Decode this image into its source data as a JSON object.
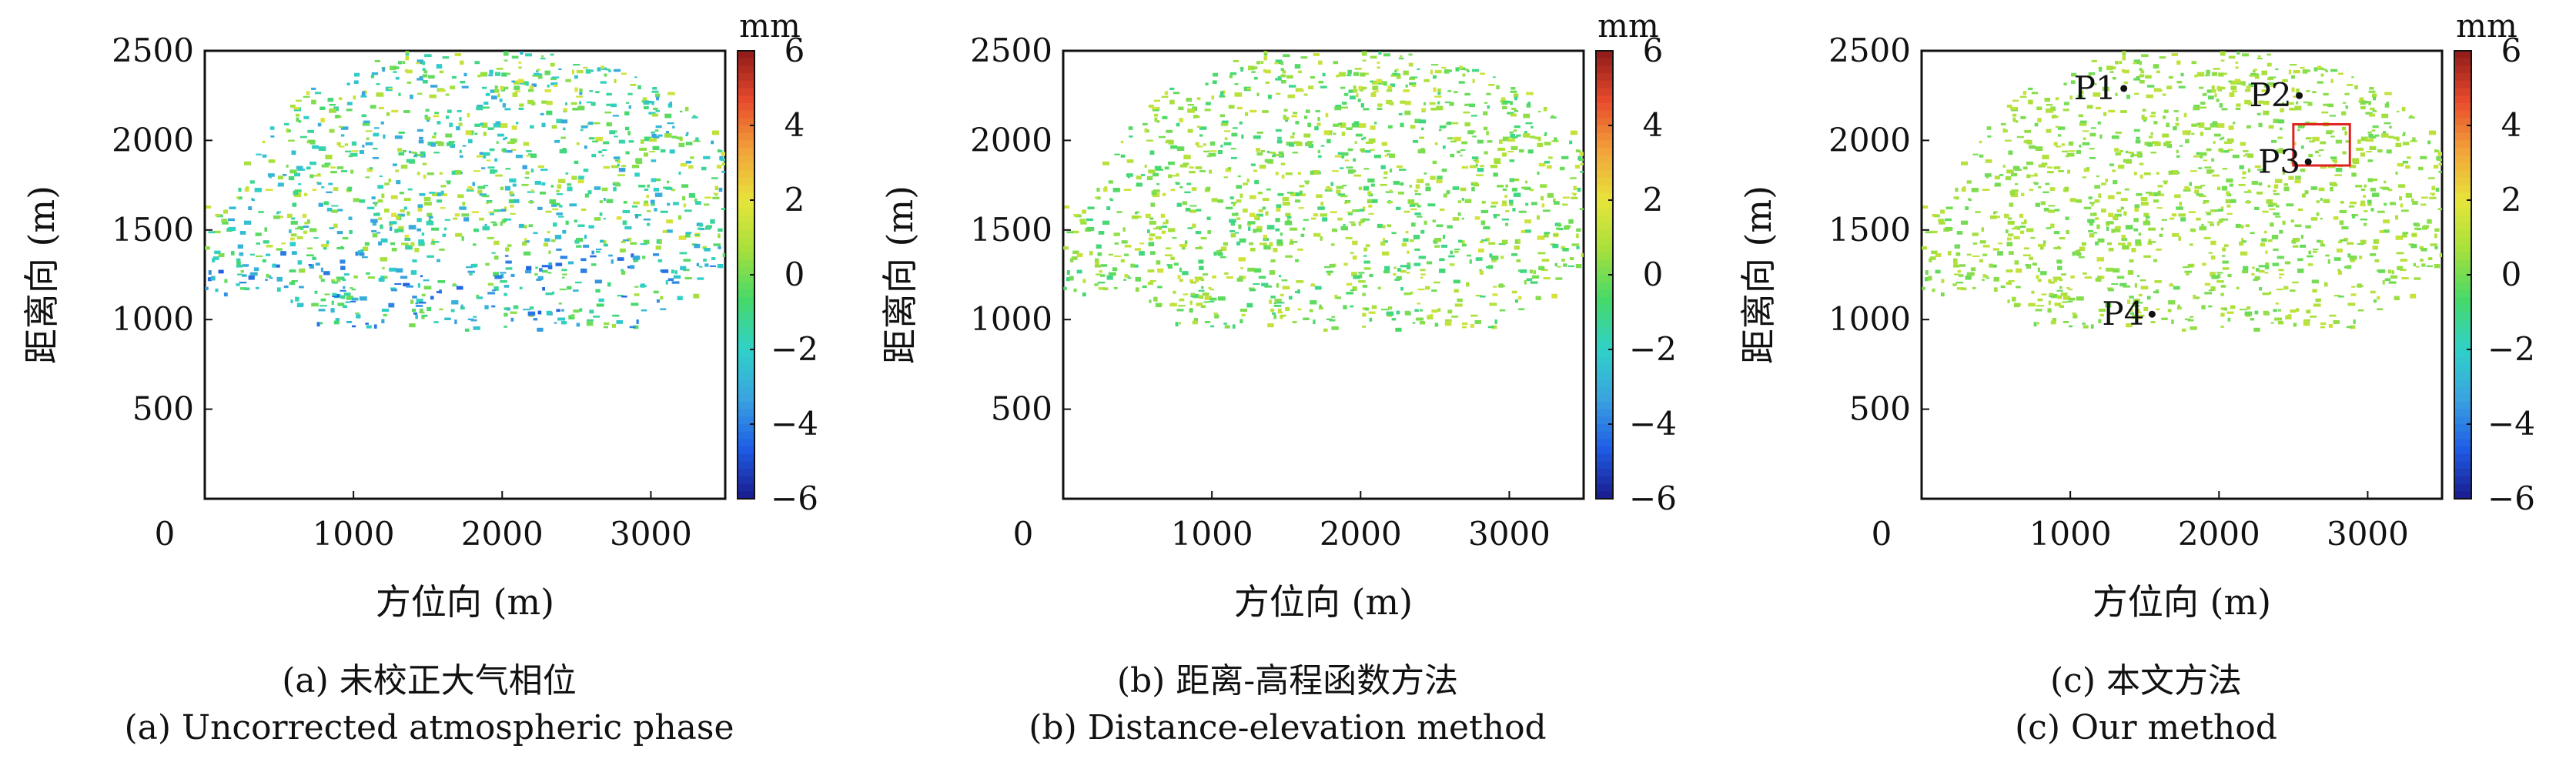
{
  "figure": {
    "colormap": [
      "#1a1a8c",
      "#1f5ce6",
      "#3aa3e0",
      "#2fd1c8",
      "#46d96a",
      "#a7e03b",
      "#e8e43a",
      "#f2a23a",
      "#e84a2c",
      "#8e1a1a"
    ]
  },
  "chart_data": [
    {
      "type": "heatmap",
      "panel_id": "a",
      "xlabel": "方位向 (m)",
      "ylabel": "距离向 (m)",
      "xlim": [
        0,
        3500
      ],
      "ylim": [
        0,
        2500
      ],
      "x_ticks": [
        "1000",
        "2000",
        "3000"
      ],
      "y_ticks": [
        "500",
        "1000",
        "1500",
        "2000",
        "2500"
      ],
      "origin_label": "0",
      "colorbar": {
        "unit": "mm",
        "ticks": [
          "6",
          "4",
          "2",
          "0",
          "-2",
          "-4",
          "-6"
        ],
        "range": [
          -6,
          6
        ]
      },
      "caption_cn": "(a) 未校正大气相位",
      "caption_en": "(a) Uncorrected atmospheric phase",
      "value_bias": -0.8,
      "value_spread": 2.6,
      "points": []
    },
    {
      "type": "heatmap",
      "panel_id": "b",
      "xlabel": "方位向 (m)",
      "ylabel": "距离向 (m)",
      "xlim": [
        0,
        3500
      ],
      "ylim": [
        0,
        2500
      ],
      "x_ticks": [
        "1000",
        "2000",
        "3000"
      ],
      "y_ticks": [
        "500",
        "1000",
        "1500",
        "2000",
        "2500"
      ],
      "origin_label": "0",
      "colorbar": {
        "unit": "mm",
        "ticks": [
          "6",
          "4",
          "2",
          "0",
          "-2",
          "-4",
          "-6"
        ],
        "range": [
          -6,
          6
        ]
      },
      "caption_cn": "(b) 距离-高程函数方法",
      "caption_en": "(b) Distance-elevation method",
      "value_bias": 0.2,
      "value_spread": 1.4,
      "points": []
    },
    {
      "type": "heatmap",
      "panel_id": "c",
      "xlabel": "方位向 (m)",
      "ylabel": "距离向 (m)",
      "xlim": [
        0,
        3500
      ],
      "ylim": [
        0,
        2500
      ],
      "x_ticks": [
        "1000",
        "2000",
        "3000"
      ],
      "y_ticks": [
        "500",
        "1000",
        "1500",
        "2000",
        "2500"
      ],
      "origin_label": "0",
      "colorbar": {
        "unit": "mm",
        "ticks": [
          "6",
          "4",
          "2",
          "0",
          "-2",
          "-4",
          "-6"
        ],
        "range": [
          -6,
          6
        ]
      },
      "caption_cn": "(c) 本文方法",
      "caption_en": "(c) Our method",
      "value_bias": 0.5,
      "value_spread": 0.8,
      "points": [
        {
          "label": "P1",
          "x": 1360,
          "y": 2290
        },
        {
          "label": "P2",
          "x": 2540,
          "y": 2250
        },
        {
          "label": "P3",
          "x": 2600,
          "y": 1880
        },
        {
          "label": "P4",
          "x": 1550,
          "y": 1030
        }
      ],
      "highlight_box": {
        "x0": 2500,
        "x1": 2880,
        "y0": 1860,
        "y1": 2090
      }
    }
  ]
}
